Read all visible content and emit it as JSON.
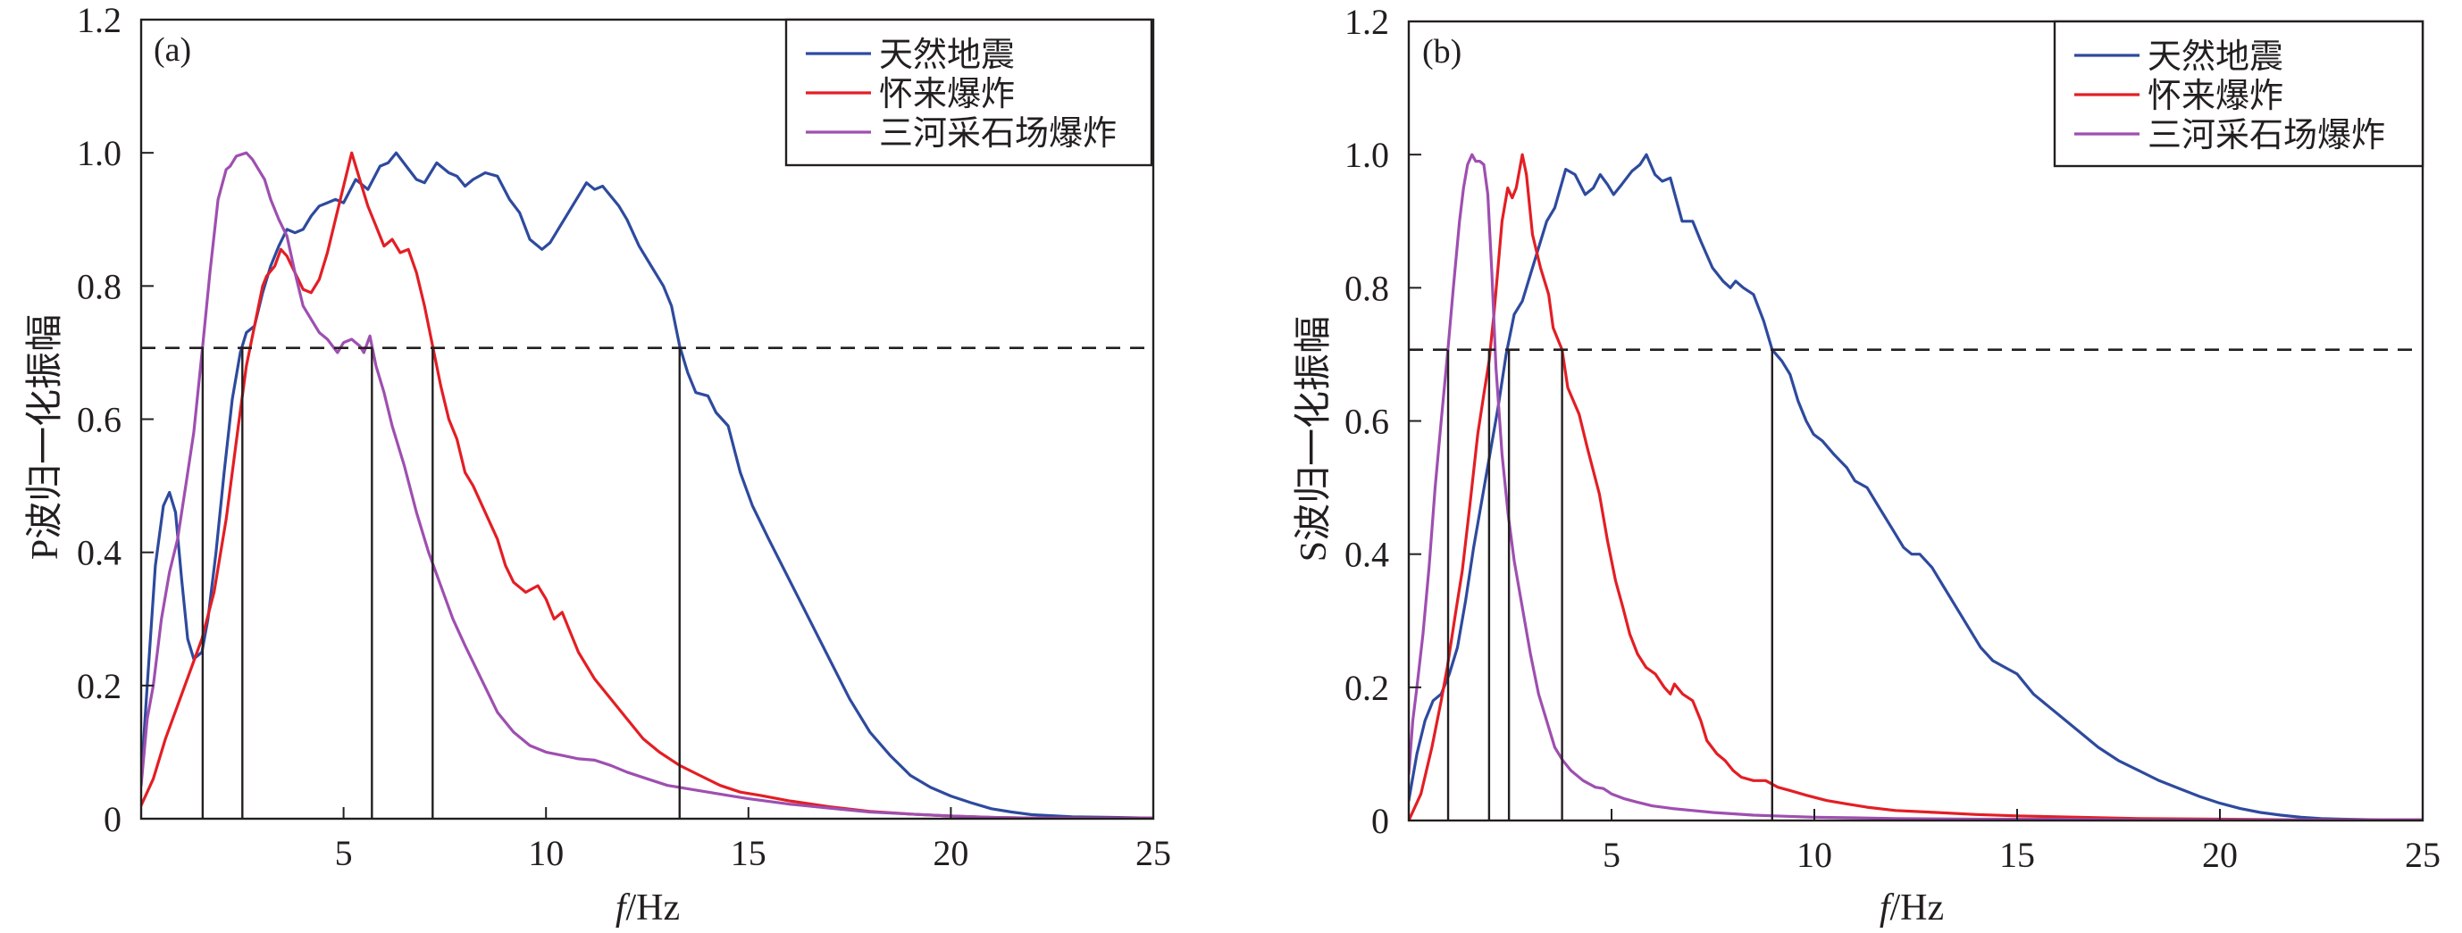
{
  "chart_data": [
    {
      "type": "line",
      "panel_label": "(a)",
      "xlabel_italic": "f",
      "xlabel_unit": "/Hz",
      "ylabel": "P波归一化振幅",
      "xlim": [
        0,
        25
      ],
      "ylim": [
        0,
        1.2
      ],
      "x_ticks": [
        5,
        10,
        15,
        20,
        25
      ],
      "x_tick_labels": [
        "5",
        "10",
        "15",
        "20",
        "25"
      ],
      "y_ticks": [
        0,
        0.2,
        0.4,
        0.6,
        0.8,
        1.0,
        1.2
      ],
      "y_tick_labels": [
        "0",
        "0.2",
        "0.4",
        "0.6",
        "0.8",
        "1.0",
        "1.2"
      ],
      "legend_position": "top-right",
      "threshold": 0.707,
      "marker_lines_x": [
        1.52,
        2.5,
        5.7,
        7.2,
        13.3
      ],
      "series": [
        {
          "name": "天然地震",
          "color": "#2e4a9e",
          "x": [
            0,
            0.15,
            0.35,
            0.55,
            0.7,
            0.85,
            1.0,
            1.15,
            1.3,
            1.5,
            1.65,
            1.85,
            2.05,
            2.25,
            2.45,
            2.6,
            2.8,
            3.0,
            3.2,
            3.4,
            3.6,
            3.8,
            4.0,
            4.2,
            4.4,
            4.6,
            4.8,
            5.0,
            5.3,
            5.6,
            5.9,
            6.1,
            6.3,
            6.55,
            6.8,
            7.0,
            7.3,
            7.6,
            7.8,
            8.0,
            8.2,
            8.5,
            8.8,
            9.1,
            9.35,
            9.6,
            9.9,
            10.1,
            10.3,
            10.6,
            10.9,
            11.0,
            11.2,
            11.4,
            11.6,
            11.8,
            12.0,
            12.3,
            12.6,
            12.9,
            13.1,
            13.3,
            13.5,
            13.7,
            14.0,
            14.2,
            14.5,
            14.8,
            15.1,
            15.5,
            16.0,
            16.5,
            17.0,
            17.5,
            18.0,
            18.5,
            19.0,
            19.5,
            20.0,
            20.5,
            21.0,
            21.5,
            22.0,
            23.0,
            24.0,
            25.0
          ],
          "y": [
            0.06,
            0.2,
            0.38,
            0.47,
            0.49,
            0.46,
            0.36,
            0.27,
            0.24,
            0.25,
            0.3,
            0.4,
            0.52,
            0.63,
            0.7,
            0.73,
            0.74,
            0.79,
            0.83,
            0.86,
            0.885,
            0.88,
            0.885,
            0.905,
            0.92,
            0.925,
            0.93,
            0.925,
            0.96,
            0.945,
            0.98,
            0.985,
            1.0,
            0.98,
            0.96,
            0.955,
            0.985,
            0.97,
            0.965,
            0.95,
            0.96,
            0.97,
            0.965,
            0.93,
            0.91,
            0.87,
            0.855,
            0.865,
            0.885,
            0.915,
            0.945,
            0.955,
            0.945,
            0.95,
            0.935,
            0.92,
            0.9,
            0.86,
            0.83,
            0.8,
            0.77,
            0.71,
            0.67,
            0.64,
            0.635,
            0.61,
            0.59,
            0.52,
            0.47,
            0.42,
            0.36,
            0.3,
            0.24,
            0.18,
            0.13,
            0.095,
            0.065,
            0.047,
            0.034,
            0.024,
            0.015,
            0.01,
            0.006,
            0.003,
            0.002,
            0.001
          ]
        },
        {
          "name": "怀来爆炸",
          "color": "#e31e24",
          "x": [
            0,
            0.3,
            0.6,
            0.9,
            1.2,
            1.5,
            1.8,
            2.1,
            2.4,
            2.6,
            2.8,
            3.0,
            3.1,
            3.3,
            3.45,
            3.6,
            3.8,
            4.0,
            4.2,
            4.4,
            4.6,
            4.8,
            5.0,
            5.2,
            5.4,
            5.6,
            5.8,
            6.0,
            6.2,
            6.4,
            6.6,
            6.8,
            7.0,
            7.2,
            7.4,
            7.6,
            7.8,
            8.0,
            8.2,
            8.5,
            8.8,
            9.0,
            9.2,
            9.5,
            9.8,
            10.0,
            10.2,
            10.4,
            10.6,
            10.8,
            11.2,
            11.6,
            12.0,
            12.4,
            12.8,
            13.3,
            13.8,
            14.3,
            14.8,
            15.3,
            16.0,
            17.0,
            18.0,
            19.0,
            20.0,
            21.0,
            22.0,
            25.0
          ],
          "y": [
            0.02,
            0.06,
            0.12,
            0.17,
            0.22,
            0.27,
            0.34,
            0.45,
            0.59,
            0.68,
            0.74,
            0.8,
            0.815,
            0.83,
            0.855,
            0.845,
            0.82,
            0.795,
            0.79,
            0.81,
            0.85,
            0.9,
            0.95,
            1.0,
            0.96,
            0.92,
            0.89,
            0.86,
            0.87,
            0.85,
            0.855,
            0.82,
            0.77,
            0.71,
            0.65,
            0.6,
            0.57,
            0.52,
            0.5,
            0.46,
            0.42,
            0.38,
            0.355,
            0.34,
            0.35,
            0.33,
            0.3,
            0.31,
            0.28,
            0.25,
            0.21,
            0.18,
            0.15,
            0.12,
            0.1,
            0.08,
            0.065,
            0.05,
            0.04,
            0.035,
            0.027,
            0.018,
            0.011,
            0.007,
            0.004,
            0.002,
            0.001,
            0.001
          ]
        },
        {
          "name": "三河采石场爆炸",
          "color": "#9e4fb0",
          "x": [
            0,
            0.15,
            0.3,
            0.5,
            0.7,
            0.9,
            1.1,
            1.3,
            1.52,
            1.7,
            1.9,
            2.1,
            2.2,
            2.35,
            2.6,
            2.75,
            2.9,
            3.05,
            3.2,
            3.4,
            3.6,
            3.8,
            4.0,
            4.2,
            4.4,
            4.6,
            4.85,
            5.0,
            5.2,
            5.4,
            5.5,
            5.65,
            5.8,
            6.0,
            6.2,
            6.5,
            6.8,
            7.1,
            7.4,
            7.7,
            8.0,
            8.4,
            8.8,
            9.2,
            9.6,
            10.0,
            10.4,
            10.8,
            11.2,
            11.6,
            12.0,
            12.5,
            13.0,
            13.5,
            14.0,
            14.5,
            15.0,
            16.0,
            17.0,
            18.0,
            19.0,
            20.0,
            21.0,
            22.0,
            25.0
          ],
          "y": [
            0.05,
            0.15,
            0.2,
            0.3,
            0.37,
            0.42,
            0.5,
            0.58,
            0.71,
            0.82,
            0.93,
            0.975,
            0.98,
            0.995,
            1.0,
            0.99,
            0.975,
            0.96,
            0.93,
            0.9,
            0.875,
            0.82,
            0.77,
            0.75,
            0.73,
            0.72,
            0.7,
            0.715,
            0.72,
            0.71,
            0.7,
            0.725,
            0.68,
            0.64,
            0.59,
            0.53,
            0.46,
            0.4,
            0.35,
            0.3,
            0.26,
            0.21,
            0.16,
            0.13,
            0.11,
            0.1,
            0.095,
            0.09,
            0.088,
            0.08,
            0.07,
            0.06,
            0.05,
            0.045,
            0.04,
            0.035,
            0.03,
            0.022,
            0.016,
            0.01,
            0.007,
            0.004,
            0.002,
            0.001,
            0.001
          ]
        }
      ]
    },
    {
      "type": "line",
      "panel_label": "(b)",
      "xlabel_italic": "f",
      "xlabel_unit": "/Hz",
      "ylabel": "S波归一化振幅",
      "xlim": [
        0,
        25
      ],
      "ylim": [
        0,
        1.2
      ],
      "x_ticks": [
        5,
        10,
        15,
        20,
        25
      ],
      "x_tick_labels": [
        "5",
        "10",
        "15",
        "20",
        "25"
      ],
      "y_ticks": [
        0,
        0.2,
        0.4,
        0.6,
        0.8,
        1.0,
        1.2
      ],
      "y_tick_labels": [
        "0",
        "0.2",
        "0.4",
        "0.6",
        "0.8",
        "1.0",
        "1.2"
      ],
      "legend_position": "top-right",
      "threshold": 0.707,
      "marker_lines_x": [
        0.97,
        1.98,
        2.47,
        3.78,
        8.96
      ],
      "series": [
        {
          "name": "天然地震",
          "color": "#2e4a9e",
          "x": [
            0,
            0.2,
            0.4,
            0.6,
            0.8,
            1.0,
            1.2,
            1.4,
            1.6,
            1.8,
            2.0,
            2.2,
            2.4,
            2.6,
            2.8,
            3.0,
            3.2,
            3.4,
            3.6,
            3.87,
            4.1,
            4.35,
            4.55,
            4.72,
            4.9,
            5.05,
            5.25,
            5.5,
            5.7,
            5.86,
            6.07,
            6.25,
            6.45,
            6.74,
            7.0,
            7.2,
            7.49,
            7.75,
            7.93,
            8.06,
            8.25,
            8.5,
            8.75,
            8.96,
            9.2,
            9.4,
            9.6,
            9.8,
            9.98,
            10.2,
            10.48,
            10.8,
            11.0,
            11.3,
            11.6,
            11.9,
            12.2,
            12.4,
            12.6,
            12.9,
            13.2,
            13.5,
            13.8,
            14.1,
            14.4,
            14.7,
            15.0,
            15.4,
            15.8,
            16.2,
            16.6,
            17.0,
            17.5,
            18.0,
            18.5,
            19.0,
            19.5,
            20.0,
            20.5,
            21.0,
            21.5,
            22.0,
            22.5,
            23.0,
            24.0,
            25.0
          ],
          "y": [
            0.03,
            0.1,
            0.15,
            0.18,
            0.19,
            0.22,
            0.26,
            0.33,
            0.41,
            0.48,
            0.55,
            0.62,
            0.7,
            0.76,
            0.78,
            0.82,
            0.86,
            0.9,
            0.92,
            0.978,
            0.97,
            0.94,
            0.95,
            0.97,
            0.955,
            0.94,
            0.955,
            0.975,
            0.985,
            1.0,
            0.97,
            0.96,
            0.965,
            0.9,
            0.9,
            0.87,
            0.83,
            0.81,
            0.8,
            0.81,
            0.8,
            0.79,
            0.75,
            0.707,
            0.69,
            0.67,
            0.63,
            0.6,
            0.58,
            0.57,
            0.55,
            0.53,
            0.51,
            0.5,
            0.47,
            0.44,
            0.41,
            0.4,
            0.4,
            0.38,
            0.35,
            0.32,
            0.29,
            0.26,
            0.24,
            0.23,
            0.22,
            0.19,
            0.17,
            0.15,
            0.13,
            0.11,
            0.09,
            0.075,
            0.06,
            0.048,
            0.036,
            0.026,
            0.018,
            0.012,
            0.008,
            0.005,
            0.003,
            0.002,
            0.001,
            0.001
          ]
        },
        {
          "name": "怀来爆炸",
          "color": "#e31e24",
          "x": [
            0,
            0.3,
            0.57,
            0.8,
            0.95,
            1.15,
            1.32,
            1.5,
            1.7,
            1.85,
            1.98,
            2.1,
            2.2,
            2.3,
            2.44,
            2.55,
            2.65,
            2.8,
            2.9,
            3.05,
            3.25,
            3.45,
            3.56,
            3.78,
            3.92,
            4.2,
            4.4,
            4.7,
            4.9,
            5.1,
            5.28,
            5.45,
            5.64,
            5.85,
            6.08,
            6.3,
            6.45,
            6.55,
            6.75,
            7.0,
            7.2,
            7.35,
            7.6,
            7.8,
            8.0,
            8.2,
            8.5,
            8.8,
            9.1,
            9.4,
            9.8,
            10.3,
            10.8,
            11.3,
            12.0,
            13.0,
            14.0,
            15.0,
            16.5,
            18.0,
            20.0,
            22.0,
            25.0
          ],
          "y": [
            0.0,
            0.04,
            0.11,
            0.18,
            0.23,
            0.31,
            0.375,
            0.47,
            0.58,
            0.64,
            0.69,
            0.76,
            0.83,
            0.9,
            0.95,
            0.935,
            0.95,
            1.0,
            0.97,
            0.88,
            0.83,
            0.79,
            0.74,
            0.707,
            0.65,
            0.61,
            0.56,
            0.49,
            0.42,
            0.36,
            0.32,
            0.28,
            0.25,
            0.23,
            0.22,
            0.2,
            0.19,
            0.205,
            0.19,
            0.18,
            0.15,
            0.12,
            0.1,
            0.09,
            0.075,
            0.065,
            0.06,
            0.06,
            0.05,
            0.045,
            0.038,
            0.03,
            0.025,
            0.02,
            0.015,
            0.012,
            0.009,
            0.007,
            0.005,
            0.003,
            0.002,
            0.001,
            0.001
          ]
        },
        {
          "name": "三河采石场爆炸",
          "color": "#9e4fb0",
          "x": [
            0,
            0.1,
            0.2,
            0.35,
            0.5,
            0.65,
            0.8,
            0.97,
            1.1,
            1.25,
            1.35,
            1.45,
            1.56,
            1.65,
            1.75,
            1.85,
            1.95,
            2.05,
            2.15,
            2.3,
            2.45,
            2.6,
            2.8,
            3.0,
            3.2,
            3.45,
            3.6,
            3.8,
            4.0,
            4.3,
            4.6,
            4.8,
            5.0,
            5.3,
            5.6,
            6.0,
            6.5,
            7.0,
            7.5,
            8.0,
            8.5,
            9.0,
            10.0,
            11.0,
            12.0,
            14.0,
            16.0,
            18.0,
            20.0,
            25.0
          ],
          "y": [
            0.07,
            0.15,
            0.2,
            0.28,
            0.38,
            0.5,
            0.6,
            0.71,
            0.8,
            0.9,
            0.95,
            0.985,
            1.0,
            0.99,
            0.99,
            0.985,
            0.94,
            0.82,
            0.68,
            0.55,
            0.46,
            0.39,
            0.32,
            0.25,
            0.19,
            0.14,
            0.11,
            0.09,
            0.075,
            0.06,
            0.05,
            0.048,
            0.04,
            0.033,
            0.028,
            0.022,
            0.018,
            0.015,
            0.012,
            0.01,
            0.008,
            0.007,
            0.005,
            0.004,
            0.003,
            0.002,
            0.002,
            0.001,
            0.001,
            0.001
          ]
        }
      ]
    }
  ]
}
